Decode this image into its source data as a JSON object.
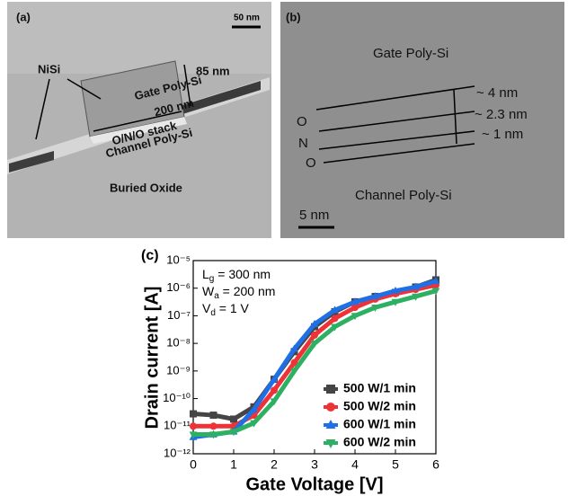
{
  "panels": {
    "a": {
      "label": "(a)",
      "scale": "50 nm",
      "nisi": "NiSi",
      "height": "85 nm",
      "gate": "Gate Poly-Si",
      "width": "200 nm",
      "stack": "O/N/O stack",
      "channel": "Channel Poly-Si",
      "box": "Buried Oxide"
    },
    "b": {
      "label": "(b)",
      "gate": "Gate Poly-Si",
      "t1": "~ 4 nm",
      "t2": "~ 2.3 nm",
      "t3": "~ 1 nm",
      "o1": "O",
      "n": "N",
      "o2": "O",
      "channel": "Channel Poly-Si",
      "scale": "5 nm"
    }
  },
  "chart_data": {
    "type": "scatter",
    "panel_label": "(c)",
    "x_label": "Gate Voltage [V]",
    "y_label": "Drain current [A]",
    "annotations": [
      {
        "text": "L",
        "sub": "g",
        "rest": " = 300 nm"
      },
      {
        "text": "W",
        "sub": "a",
        "rest": " = 200 nm"
      },
      {
        "text": "V",
        "sub": "d",
        "rest": " = 1 V"
      }
    ],
    "x": [
      0,
      0.5,
      1,
      1.5,
      2,
      2.5,
      3,
      3.5,
      4,
      4.5,
      5,
      5.5,
      6
    ],
    "series": [
      {
        "name": "500 W/1 min",
        "color": "#454545",
        "marker": "square",
        "values": [
          2.8e-11,
          2.5e-11,
          1.8e-11,
          5e-11,
          5e-10,
          5e-09,
          4e-08,
          1.4e-07,
          3.2e-07,
          5e-07,
          7e-07,
          1.1e-06,
          2e-06
        ]
      },
      {
        "name": "500 W/2 min",
        "color": "#ee3338",
        "marker": "circle",
        "values": [
          1e-11,
          1e-11,
          1e-11,
          2.5e-11,
          2e-10,
          2e-09,
          2e-08,
          8e-08,
          2e-07,
          4e-07,
          6.3e-07,
          9e-07,
          1.3e-06
        ]
      },
      {
        "name": "600 W/1 min",
        "color": "#1f6fe6",
        "marker": "triangle",
        "values": [
          4e-12,
          5e-12,
          6.3e-12,
          4e-11,
          5e-10,
          6.3e-09,
          5e-08,
          1.6e-07,
          3.2e-07,
          5e-07,
          8e-07,
          1.1e-06,
          1.8e-06
        ]
      },
      {
        "name": "600 W/2 min",
        "color": "#2eb062",
        "marker": "triangle-down",
        "values": [
          5e-12,
          5e-12,
          6.3e-12,
          1.3e-11,
          8e-11,
          1e-09,
          1e-08,
          4e-08,
          1e-07,
          2e-07,
          3.2e-07,
          5e-07,
          8e-07
        ]
      }
    ],
    "xlim": [
      0,
      6
    ],
    "xticks": [
      0,
      1,
      2,
      3,
      4,
      5,
      6
    ],
    "ylim": [
      1e-12,
      1e-05
    ],
    "yscale": "log",
    "yticks": [
      {
        "value": 1e-12,
        "label": "10⁻¹²"
      },
      {
        "value": 1e-11,
        "label": "10⁻¹¹"
      },
      {
        "value": 1e-10,
        "label": "10⁻¹⁰"
      },
      {
        "value": 1e-09,
        "label": "10⁻⁹"
      },
      {
        "value": 1e-08,
        "label": "10⁻⁸"
      },
      {
        "value": 1e-07,
        "label": "10⁻⁷"
      },
      {
        "value": 1e-06,
        "label": "10⁻⁶"
      },
      {
        "value": 1e-05,
        "label": "10⁻⁵"
      }
    ],
    "legend": "lower right"
  }
}
